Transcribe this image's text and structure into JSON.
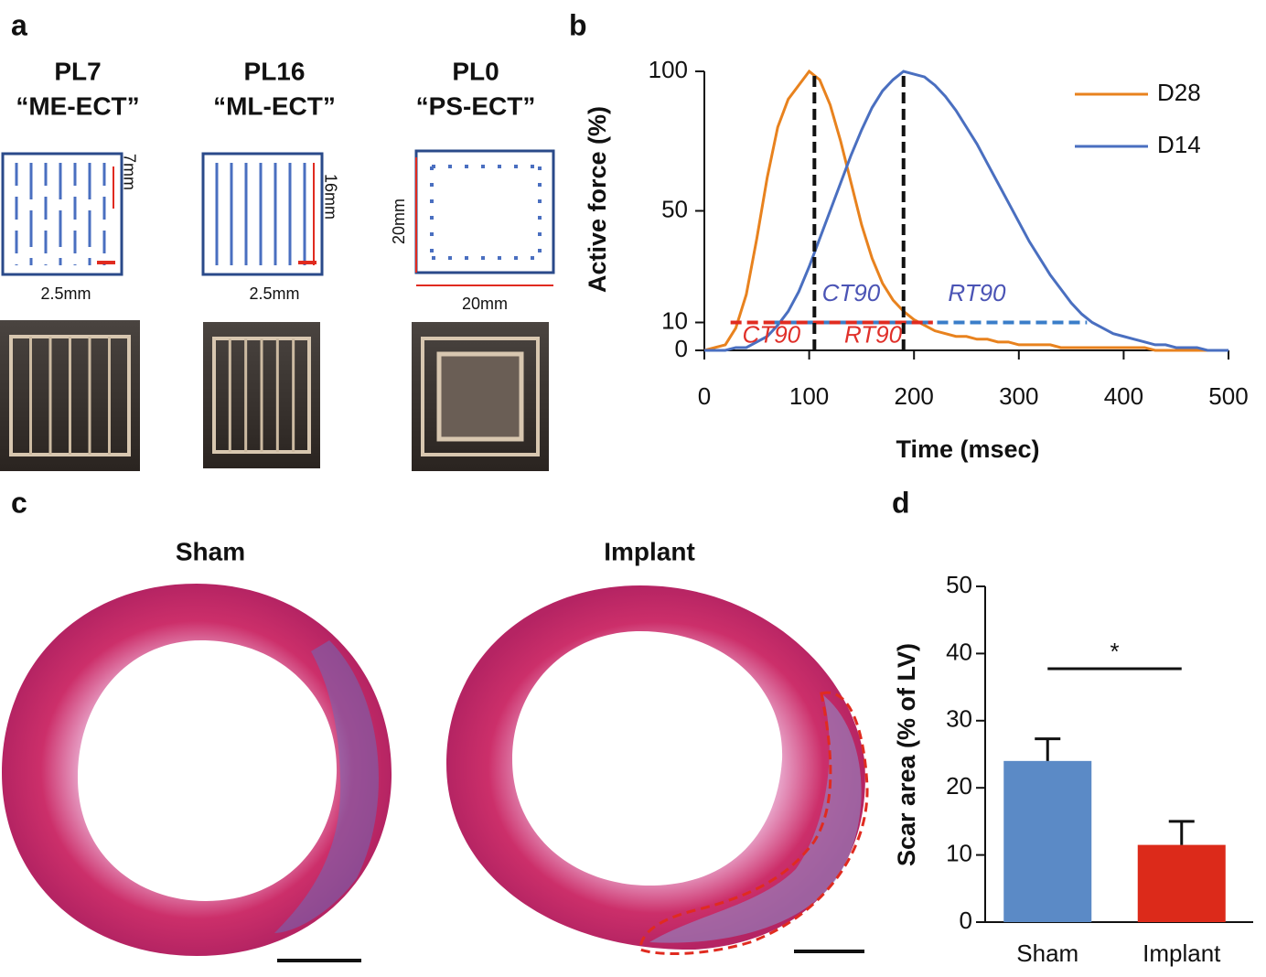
{
  "panels": {
    "a": {
      "label": "a",
      "items": [
        {
          "title": "PL7",
          "subtitle": "“ME-ECT”",
          "dims": [
            "7mm",
            "2.5mm"
          ]
        },
        {
          "title": "PL16",
          "subtitle": "“ML-ECT”",
          "dims": [
            "16mm",
            "2.5mm"
          ]
        },
        {
          "title": "PL0",
          "subtitle": "“PS-ECT”",
          "dims": [
            "20mm",
            "20mm"
          ]
        }
      ]
    },
    "c": {
      "label": "c",
      "titles": [
        "Sham",
        "Implant"
      ]
    }
  },
  "chart_data": [
    {
      "type": "line",
      "panel_label": "b",
      "xlabel": "Time (msec)",
      "ylabel": "Active force (%)",
      "xlim": [
        0,
        500
      ],
      "ylim": [
        0,
        100
      ],
      "xticks": [
        0,
        100,
        200,
        300,
        400,
        500
      ],
      "yticks": [
        0,
        10,
        50,
        100
      ],
      "x": [
        0,
        10,
        20,
        30,
        40,
        50,
        60,
        70,
        80,
        90,
        100,
        110,
        120,
        130,
        140,
        150,
        160,
        170,
        180,
        190,
        200,
        210,
        220,
        230,
        240,
        250,
        260,
        270,
        280,
        290,
        300,
        310,
        320,
        330,
        340,
        350,
        360,
        370,
        380,
        390,
        400,
        410,
        420,
        430,
        440,
        450,
        460,
        470,
        480,
        490,
        500
      ],
      "series": [
        {
          "name": "D28",
          "color": "#e8821e",
          "values": [
            0,
            1,
            2,
            8,
            20,
            40,
            62,
            80,
            90,
            95,
            100,
            97,
            88,
            75,
            60,
            45,
            33,
            24,
            18,
            14,
            11,
            9,
            7,
            6,
            5,
            5,
            4,
            4,
            3,
            3,
            2,
            2,
            2,
            2,
            1,
            1,
            1,
            1,
            1,
            1,
            1,
            1,
            1,
            0,
            0,
            0,
            0,
            0,
            0,
            0,
            0
          ]
        },
        {
          "name": "D14",
          "color": "#4a6fc0",
          "values": [
            0,
            0,
            0,
            1,
            1,
            3,
            5,
            9,
            14,
            21,
            30,
            40,
            50,
            60,
            70,
            79,
            87,
            93,
            97,
            100,
            99,
            98,
            95,
            91,
            86,
            80,
            74,
            67,
            60,
            53,
            46,
            39,
            33,
            27,
            22,
            17,
            13,
            10,
            8,
            6,
            5,
            4,
            3,
            2,
            2,
            1,
            1,
            1,
            0,
            0,
            0
          ]
        }
      ],
      "vlines": [
        {
          "x": 105,
          "y": [
            0,
            100
          ]
        },
        {
          "x": 190,
          "y": [
            0,
            100
          ]
        }
      ],
      "hlines": [
        {
          "y": 10,
          "x": [
            65,
            365
          ],
          "color": "#3a7dc9"
        },
        {
          "y": 10,
          "x": [
            25,
            218
          ],
          "color": "#e02b20"
        }
      ],
      "annotations": [
        {
          "text": "CT90",
          "x": 140,
          "y": 20,
          "color": "#4b54b5"
        },
        {
          "text": "RT90",
          "x": 260,
          "y": 20,
          "color": "#4b54b5"
        },
        {
          "text": "CT90",
          "x": 64,
          "y": 5,
          "color": "#e0302a"
        },
        {
          "text": "RT90",
          "x": 161,
          "y": 5,
          "color": "#e0302a"
        }
      ]
    },
    {
      "type": "bar",
      "panel_label": "d",
      "ylabel": "Scar area (% of LV)",
      "categories": [
        "Sham",
        "Implant"
      ],
      "values": [
        24,
        11.5
      ],
      "errors": [
        3.3,
        3.5
      ],
      "colors": [
        "#5b8ac6",
        "#dc2a1a"
      ],
      "ylim": [
        0,
        50
      ],
      "yticks": [
        0,
        10,
        20,
        30,
        40,
        50
      ],
      "significance": "*"
    }
  ]
}
